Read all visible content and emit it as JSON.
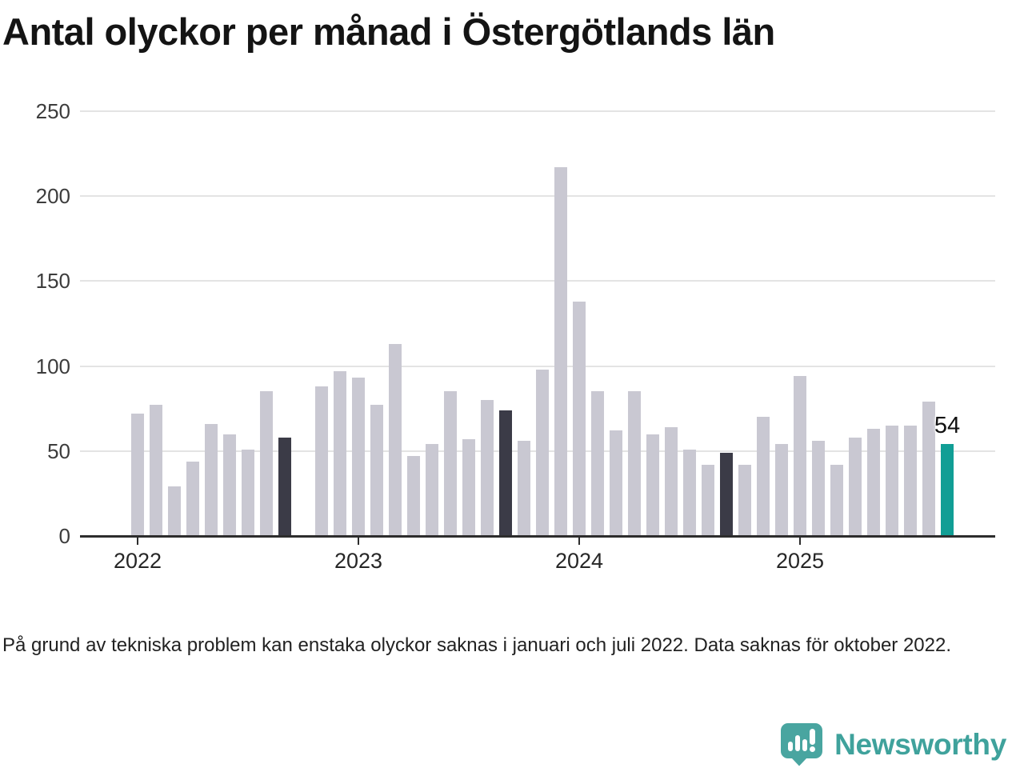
{
  "title": "Antal olyckor per månad i Östergötlands län",
  "footnote": "På grund av tekniska problem kan enstaka olyckor saknas i januari och juli 2022. Data saknas för oktober 2022.",
  "branding": {
    "name": "Newsworthy",
    "logo_icon": "bar-chart-exclamation-badge"
  },
  "colors": {
    "bar": "#c9c8d2",
    "bar_highlight_dark": "#3b3b47",
    "bar_current": "#119e95",
    "axis": "#2d2d2d",
    "grid": "#e4e4e4",
    "title_text": "#141414",
    "body_text": "#222222",
    "brand_teal": "#3fa29c",
    "badge_teal": "#49a5a0"
  },
  "chart_data": {
    "type": "bar",
    "title": "Antal olyckor per månad i Östergötlands län",
    "xlabel": "",
    "ylabel": "",
    "ylim": [
      0,
      250
    ],
    "yticks": [
      0,
      50,
      100,
      150,
      200,
      250
    ],
    "grid": "horizontal",
    "legend": "none",
    "x": [
      "2022-01",
      "2022-02",
      "2022-03",
      "2022-04",
      "2022-05",
      "2022-06",
      "2022-07",
      "2022-08",
      "2022-09",
      "2022-10",
      "2022-11",
      "2022-12",
      "2023-01",
      "2023-02",
      "2023-03",
      "2023-04",
      "2023-05",
      "2023-06",
      "2023-07",
      "2023-08",
      "2023-09",
      "2023-10",
      "2023-11",
      "2023-12",
      "2024-01",
      "2024-02",
      "2024-03",
      "2024-04",
      "2024-05",
      "2024-06",
      "2024-07",
      "2024-08",
      "2024-09",
      "2024-10",
      "2024-11",
      "2024-12",
      "2025-01",
      "2025-02",
      "2025-03",
      "2025-04",
      "2025-05",
      "2025-06",
      "2025-07",
      "2025-08",
      "2025-09"
    ],
    "values": [
      72,
      77,
      29,
      44,
      66,
      60,
      51,
      85,
      58,
      null,
      88,
      97,
      93,
      77,
      113,
      47,
      54,
      85,
      57,
      80,
      74,
      56,
      98,
      217,
      138,
      85,
      62,
      85,
      60,
      64,
      51,
      42,
      49,
      42,
      70,
      54,
      94,
      56,
      42,
      58,
      63,
      65,
      65,
      79,
      54
    ],
    "missing_index": 9,
    "highlight_dark_indices": [
      8,
      20,
      32
    ],
    "highlight_current_index": 44,
    "annotation": {
      "text": "54",
      "at_index": 44
    },
    "year_ticks": [
      {
        "label": "2022",
        "index": 0
      },
      {
        "label": "2023",
        "index": 12
      },
      {
        "label": "2024",
        "index": 24
      },
      {
        "label": "2025",
        "index": 36
      }
    ]
  }
}
